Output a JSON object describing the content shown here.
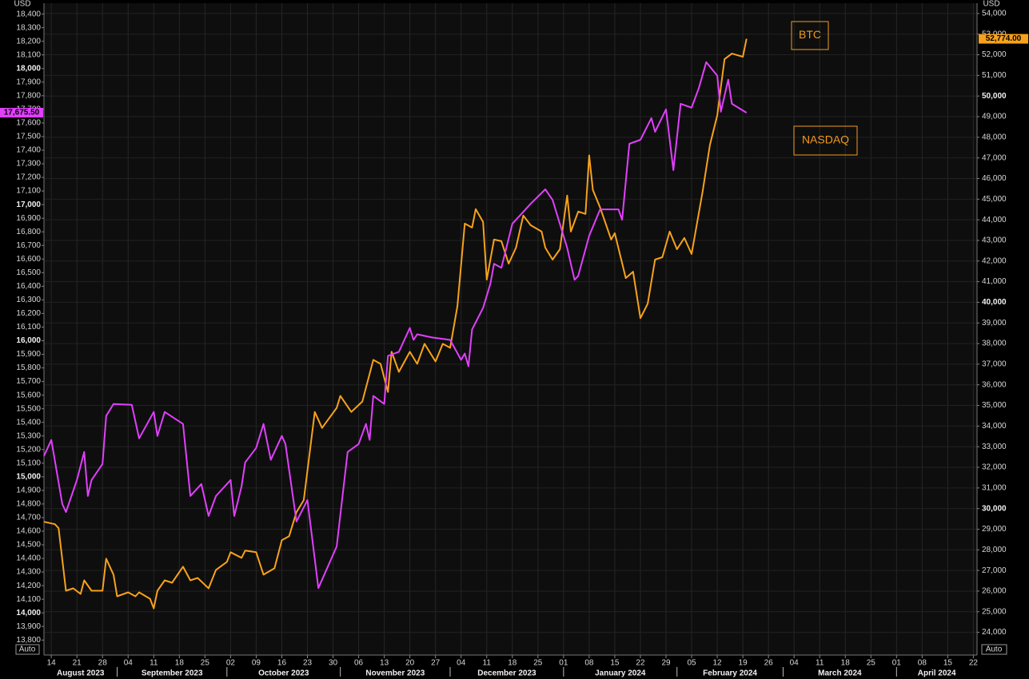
{
  "chart_data": {
    "type": "line",
    "y_unit": "USD",
    "y2_unit": "USD",
    "auto_label": "Auto",
    "legend_color": "#f39a1e",
    "grid": true,
    "xlim": [
      "2023-08-12",
      "2024-04-23"
    ],
    "ylim": [
      13690,
      18480
    ],
    "y2lim": [
      22900,
      54500
    ],
    "series": [
      {
        "name": "BTC",
        "color": "#f7a21b",
        "axis": "y2",
        "last_label": "52,774.00",
        "x": [
          "2023-08-12",
          "2023-08-15",
          "2023-08-16",
          "2023-08-18",
          "2023-08-20",
          "2023-08-22",
          "2023-08-23",
          "2023-08-25",
          "2023-08-28",
          "2023-08-29",
          "2023-08-31",
          "2023-09-01",
          "2023-09-04",
          "2023-09-06",
          "2023-09-07",
          "2023-09-10",
          "2023-09-11",
          "2023-09-12",
          "2023-09-14",
          "2023-09-16",
          "2023-09-19",
          "2023-09-21",
          "2023-09-23",
          "2023-09-26",
          "2023-09-28",
          "2023-10-01",
          "2023-10-02",
          "2023-10-05",
          "2023-10-06",
          "2023-10-09",
          "2023-10-11",
          "2023-10-14",
          "2023-10-16",
          "2023-10-18",
          "2023-10-20",
          "2023-10-22",
          "2023-10-25",
          "2023-10-27",
          "2023-10-31",
          "2023-11-01",
          "2023-11-04",
          "2023-11-07",
          "2023-11-10",
          "2023-11-12",
          "2023-11-14",
          "2023-11-15",
          "2023-11-17",
          "2023-11-20",
          "2023-11-22",
          "2023-11-24",
          "2023-11-27",
          "2023-11-29",
          "2023-12-01",
          "2023-12-03",
          "2023-12-05",
          "2023-12-07",
          "2023-12-08",
          "2023-12-10",
          "2023-12-11",
          "2023-12-13",
          "2023-12-15",
          "2023-12-17",
          "2023-12-19",
          "2023-12-21",
          "2023-12-23",
          "2023-12-26",
          "2023-12-27",
          "2023-12-29",
          "2023-12-31",
          "2024-01-02",
          "2024-01-03",
          "2024-01-05",
          "2024-01-07",
          "2024-01-08",
          "2024-01-09",
          "2024-01-11",
          "2024-01-14",
          "2024-01-15",
          "2024-01-18",
          "2024-01-20",
          "2024-01-22",
          "2024-01-24",
          "2024-01-26",
          "2024-01-28",
          "2024-01-30",
          "2024-02-01",
          "2024-02-03",
          "2024-02-05",
          "2024-02-08",
          "2024-02-10",
          "2024-02-12",
          "2024-02-13",
          "2024-02-14",
          "2024-02-16",
          "2024-02-19",
          "2024-02-20"
        ],
        "values": [
          29360,
          29243,
          29049,
          26017,
          26133,
          25861,
          26522,
          26017,
          26017,
          27572,
          26794,
          25745,
          25939,
          25745,
          25939,
          25628,
          25162,
          26017,
          26522,
          26405,
          27183,
          26522,
          26638,
          26133,
          27028,
          27417,
          27883,
          27611,
          27961,
          27883,
          26794,
          27106,
          28466,
          28661,
          29827,
          30410,
          34685,
          33908,
          34880,
          35461,
          34685,
          35190,
          37210,
          37016,
          35656,
          37601,
          36627,
          37601,
          37016,
          37987,
          37133,
          37987,
          37794,
          39814,
          43817,
          43622,
          44516,
          43894,
          41096,
          43040,
          42962,
          41874,
          42651,
          44206,
          43740,
          43429,
          42651,
          42068,
          42573,
          45175,
          43429,
          44400,
          44283,
          47121,
          45450,
          44594,
          43040,
          43351,
          41174,
          41485,
          39232,
          39931,
          42068,
          42185,
          43429,
          42573,
          43117,
          42341,
          45372,
          47626,
          49064,
          50424,
          51785,
          52057,
          51901,
          52774
        ]
      },
      {
        "name": "NASDAQ",
        "color": "#e040fb",
        "axis": "y",
        "last_label": "17,675.50",
        "x": [
          "2023-08-12",
          "2023-08-14",
          "2023-08-17",
          "2023-08-18",
          "2023-08-21",
          "2023-08-23",
          "2023-08-24",
          "2023-08-25",
          "2023-08-28",
          "2023-08-29",
          "2023-08-31",
          "2023-09-05",
          "2023-09-07",
          "2023-09-11",
          "2023-09-12",
          "2023-09-14",
          "2023-09-19",
          "2023-09-21",
          "2023-09-24",
          "2023-09-26",
          "2023-09-28",
          "2023-10-02",
          "2023-10-03",
          "2023-10-05",
          "2023-10-06",
          "2023-10-09",
          "2023-10-11",
          "2023-10-13",
          "2023-10-16",
          "2023-10-17",
          "2023-10-20",
          "2023-10-23",
          "2023-10-26",
          "2023-10-31",
          "2023-11-03",
          "2023-11-06",
          "2023-11-08",
          "2023-11-09",
          "2023-11-10",
          "2023-11-13",
          "2023-11-14",
          "2023-11-17",
          "2023-11-20",
          "2023-11-21",
          "2023-11-22",
          "2023-11-26",
          "2023-12-01",
          "2023-12-04",
          "2023-12-05",
          "2023-12-06",
          "2023-12-07",
          "2023-12-10",
          "2023-12-12",
          "2023-12-13",
          "2023-12-15",
          "2023-12-18",
          "2023-12-21",
          "2023-12-23",
          "2023-12-27",
          "2023-12-29",
          "2024-01-02",
          "2024-01-04",
          "2024-01-05",
          "2024-01-08",
          "2024-01-11",
          "2024-01-16",
          "2024-01-17",
          "2024-01-19",
          "2024-01-22",
          "2024-01-25",
          "2024-01-26",
          "2024-01-29",
          "2024-01-31",
          "2024-02-02",
          "2024-02-05",
          "2024-02-07",
          "2024-02-09",
          "2024-02-12",
          "2024-02-13",
          "2024-02-15",
          "2024-02-16",
          "2024-02-20"
        ],
        "values": [
          15153,
          15270,
          14800,
          14741,
          14976,
          15182,
          14859,
          14976,
          15094,
          15447,
          15535,
          15529,
          15282,
          15476,
          15300,
          15476,
          15388,
          14859,
          14947,
          14712,
          14859,
          14976,
          14712,
          14929,
          15106,
          15212,
          15388,
          15124,
          15300,
          15241,
          14671,
          14829,
          14182,
          14488,
          15182,
          15241,
          15388,
          15271,
          15594,
          15535,
          15888,
          15918,
          16094,
          16006,
          16047,
          16024,
          16006,
          15859,
          15906,
          15812,
          16082,
          16241,
          16418,
          16565,
          16535,
          16859,
          16947,
          17006,
          17112,
          17035,
          16682,
          16447,
          16476,
          16771,
          16965,
          16965,
          16888,
          17447,
          17476,
          17635,
          17535,
          17700,
          17253,
          17741,
          17712,
          17859,
          18047,
          17947,
          17682,
          17918,
          17741,
          17675.5
        ]
      }
    ],
    "yticks": [
      {
        "value": 13800,
        "label": "13,800"
      },
      {
        "value": 13900,
        "label": "13,900"
      },
      {
        "value": 14000,
        "label": "14,000"
      },
      {
        "value": 14100,
        "label": "14,100"
      },
      {
        "value": 14200,
        "label": "14,200"
      },
      {
        "value": 14300,
        "label": "14,300"
      },
      {
        "value": 14400,
        "label": "14,400"
      },
      {
        "value": 14500,
        "label": "14,500"
      },
      {
        "value": 14600,
        "label": "14,600"
      },
      {
        "value": 14700,
        "label": "14,700"
      },
      {
        "value": 14800,
        "label": "14,800"
      },
      {
        "value": 14900,
        "label": "14,900"
      },
      {
        "value": 15000,
        "label": "15,000"
      },
      {
        "value": 15100,
        "label": "15,100"
      },
      {
        "value": 15200,
        "label": "15,200"
      },
      {
        "value": 15300,
        "label": "15,300"
      },
      {
        "value": 15400,
        "label": "15,400"
      },
      {
        "value": 15500,
        "label": "15,500"
      },
      {
        "value": 15600,
        "label": "15,600"
      },
      {
        "value": 15700,
        "label": "15,700"
      },
      {
        "value": 15800,
        "label": "15,800"
      },
      {
        "value": 15900,
        "label": "15,900"
      },
      {
        "value": 16000,
        "label": "16,000"
      },
      {
        "value": 16100,
        "label": "16,100"
      },
      {
        "value": 16200,
        "label": "16,200"
      },
      {
        "value": 16300,
        "label": "16,300"
      },
      {
        "value": 16400,
        "label": "16,400"
      },
      {
        "value": 16500,
        "label": "16,500"
      },
      {
        "value": 16600,
        "label": "16,600"
      },
      {
        "value": 16700,
        "label": "16,700"
      },
      {
        "value": 16800,
        "label": "16,800"
      },
      {
        "value": 16900,
        "label": "16,900"
      },
      {
        "value": 17000,
        "label": "17,000"
      },
      {
        "value": 17100,
        "label": "17,100"
      },
      {
        "value": 17200,
        "label": "17,200"
      },
      {
        "value": 17300,
        "label": "17,300"
      },
      {
        "value": 17400,
        "label": "17,400"
      },
      {
        "value": 17500,
        "label": "17,500"
      },
      {
        "value": 17600,
        "label": "17,600"
      },
      {
        "value": 17700,
        "label": "17,700"
      },
      {
        "value": 17800,
        "label": "17,800"
      },
      {
        "value": 17900,
        "label": "17,900"
      },
      {
        "value": 18000,
        "label": "18,000"
      },
      {
        "value": 18100,
        "label": "18,100"
      },
      {
        "value": 18200,
        "label": "18,200"
      },
      {
        "value": 18300,
        "label": "18,300"
      },
      {
        "value": 18400,
        "label": "18,400"
      }
    ],
    "y2ticks": [
      {
        "value": 24000,
        "label": "24,000"
      },
      {
        "value": 25000,
        "label": "25,000"
      },
      {
        "value": 26000,
        "label": "26,000"
      },
      {
        "value": 27000,
        "label": "27,000"
      },
      {
        "value": 28000,
        "label": "28,000"
      },
      {
        "value": 29000,
        "label": "29,000"
      },
      {
        "value": 30000,
        "label": "30,000"
      },
      {
        "value": 31000,
        "label": "31,000"
      },
      {
        "value": 32000,
        "label": "32,000"
      },
      {
        "value": 33000,
        "label": "33,000"
      },
      {
        "value": 34000,
        "label": "34,000"
      },
      {
        "value": 35000,
        "label": "35,000"
      },
      {
        "value": 36000,
        "label": "36,000"
      },
      {
        "value": 37000,
        "label": "37,000"
      },
      {
        "value": 38000,
        "label": "38,000"
      },
      {
        "value": 39000,
        "label": "39,000"
      },
      {
        "value": 40000,
        "label": "40,000"
      },
      {
        "value": 41000,
        "label": "41,000"
      },
      {
        "value": 42000,
        "label": "42,000"
      },
      {
        "value": 43000,
        "label": "43,000"
      },
      {
        "value": 44000,
        "label": "44,000"
      },
      {
        "value": 45000,
        "label": "45,000"
      },
      {
        "value": 46000,
        "label": "46,000"
      },
      {
        "value": 47000,
        "label": "47,000"
      },
      {
        "value": 48000,
        "label": "48,000"
      },
      {
        "value": 49000,
        "label": "49,000"
      },
      {
        "value": 50000,
        "label": "50,000"
      },
      {
        "value": 51000,
        "label": "51,000"
      },
      {
        "value": 52000,
        "label": "52,000"
      },
      {
        "value": 53000,
        "label": "53,000"
      },
      {
        "value": 54000,
        "label": "54,000"
      }
    ],
    "xticks": [
      {
        "value": "2023-08-14",
        "label": "14"
      },
      {
        "value": "2023-08-21",
        "label": "21"
      },
      {
        "value": "2023-08-28",
        "label": "28"
      },
      {
        "value": "2023-09-04",
        "label": "04"
      },
      {
        "value": "2023-09-11",
        "label": "11"
      },
      {
        "value": "2023-09-18",
        "label": "18"
      },
      {
        "value": "2023-09-25",
        "label": "25"
      },
      {
        "value": "2023-10-02",
        "label": "02"
      },
      {
        "value": "2023-10-09",
        "label": "09"
      },
      {
        "value": "2023-10-16",
        "label": "16"
      },
      {
        "value": "2023-10-23",
        "label": "23"
      },
      {
        "value": "2023-10-30",
        "label": "30"
      },
      {
        "value": "2023-11-06",
        "label": "06"
      },
      {
        "value": "2023-11-13",
        "label": "13"
      },
      {
        "value": "2023-11-20",
        "label": "20"
      },
      {
        "value": "2023-11-27",
        "label": "27"
      },
      {
        "value": "2023-12-04",
        "label": "04"
      },
      {
        "value": "2023-12-11",
        "label": "11"
      },
      {
        "value": "2023-12-18",
        "label": "18"
      },
      {
        "value": "2023-12-25",
        "label": "25"
      },
      {
        "value": "2024-01-01",
        "label": "01"
      },
      {
        "value": "2024-01-08",
        "label": "08"
      },
      {
        "value": "2024-01-15",
        "label": "15"
      },
      {
        "value": "2024-01-22",
        "label": "22"
      },
      {
        "value": "2024-01-29",
        "label": "29"
      },
      {
        "value": "2024-02-05",
        "label": "05"
      },
      {
        "value": "2024-02-12",
        "label": "12"
      },
      {
        "value": "2024-02-19",
        "label": "19"
      },
      {
        "value": "2024-02-26",
        "label": "26"
      },
      {
        "value": "2024-03-04",
        "label": "04"
      },
      {
        "value": "2024-03-11",
        "label": "11"
      },
      {
        "value": "2024-03-18",
        "label": "18"
      },
      {
        "value": "2024-03-25",
        "label": "25"
      },
      {
        "value": "2024-04-01",
        "label": "01"
      },
      {
        "value": "2024-04-08",
        "label": "08"
      },
      {
        "value": "2024-04-15",
        "label": "15"
      },
      {
        "value": "2024-04-22",
        "label": "22"
      }
    ],
    "months": [
      {
        "value": "2023-08",
        "label": "August 2023"
      },
      {
        "value": "2023-09",
        "label": "September 2023"
      },
      {
        "value": "2023-10",
        "label": "October 2023"
      },
      {
        "value": "2023-11",
        "label": "November 2023"
      },
      {
        "value": "2023-12",
        "label": "December 2023"
      },
      {
        "value": "2024-01",
        "label": "January 2024"
      },
      {
        "value": "2024-02",
        "label": "February 2024"
      },
      {
        "value": "2024-03",
        "label": "March 2024"
      },
      {
        "value": "2024-04",
        "label": "April 2024"
      }
    ]
  }
}
